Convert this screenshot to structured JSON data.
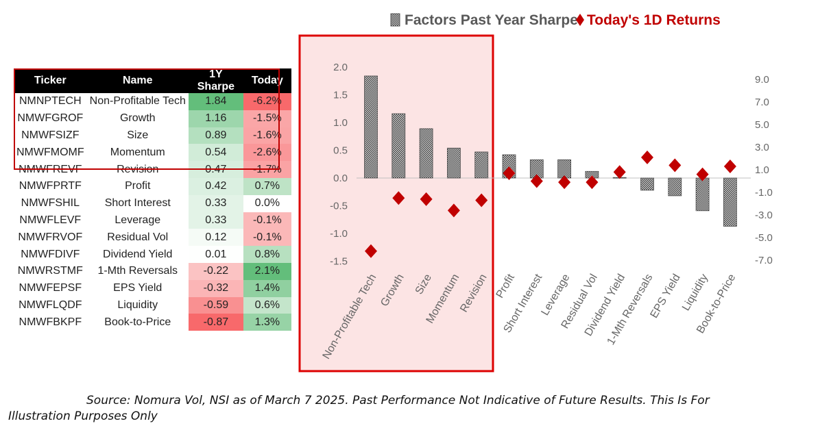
{
  "table": {
    "headers": [
      "Ticker",
      "Name",
      "1Y Sharpe",
      "Today"
    ],
    "rows": [
      {
        "ticker": "NMNPTECH",
        "name": "Non-Profitable Tech",
        "sharpe": "1.84",
        "today": "-6.2%"
      },
      {
        "ticker": "NMWFGROF",
        "name": "Growth",
        "sharpe": "1.16",
        "today": "-1.5%"
      },
      {
        "ticker": "NMWFSIZF",
        "name": "Size",
        "sharpe": "0.89",
        "today": "-1.6%"
      },
      {
        "ticker": "NMWFMOMF",
        "name": "Momentum",
        "sharpe": "0.54",
        "today": "-2.6%"
      },
      {
        "ticker": "NMWFREVF",
        "name": "Revision",
        "sharpe": "0.47",
        "today": "-1.7%"
      },
      {
        "ticker": "NMWFPRTF",
        "name": "Profit",
        "sharpe": "0.42",
        "today": "0.7%"
      },
      {
        "ticker": "NMWFSHIL",
        "name": "Short Interest",
        "sharpe": "0.33",
        "today": "0.0%"
      },
      {
        "ticker": "NMWFLEVF",
        "name": "Leverage",
        "sharpe": "0.33",
        "today": "-0.1%"
      },
      {
        "ticker": "NMWFRVOF",
        "name": "Residual Vol",
        "sharpe": "0.12",
        "today": "-0.1%"
      },
      {
        "ticker": "NMWFDIVF",
        "name": "Dividend Yield",
        "sharpe": "0.01",
        "today": "0.8%"
      },
      {
        "ticker": "NMWRSTMF",
        "name": "1-Mth Reversals",
        "sharpe": "-0.22",
        "today": "2.1%"
      },
      {
        "ticker": "NMWFEPSF",
        "name": "EPS Yield",
        "sharpe": "-0.32",
        "today": "1.4%"
      },
      {
        "ticker": "NMWFLQDF",
        "name": "Liquidity",
        "sharpe": "-0.59",
        "today": "0.6%"
      },
      {
        "ticker": "NMWFBKPF",
        "name": "Book-to-Price",
        "sharpe": "-0.87",
        "today": "1.3%"
      }
    ]
  },
  "colors": {
    "header_bg": "#000000",
    "highlight_border": "#c00000",
    "diamond": "#c00000",
    "bar_fill": "#8c8c8c",
    "legend_bar_text": "#595959",
    "legend_diamond_text": "#c00000"
  },
  "chart_data": {
    "type": "bar",
    "categories": [
      "Non-Profitable Tech",
      "Growth",
      "Size",
      "Momentum",
      "Revision",
      "Profit",
      "Short Interest",
      "Leverage",
      "Residual Vol",
      "Dividend Yield",
      "1-Mth Reversals",
      "EPS Yield",
      "Liquidity",
      "Book-to-Price"
    ],
    "series": [
      {
        "name": "Factors Past Year Sharpe",
        "kind": "bar",
        "axis": "left",
        "values": [
          1.84,
          1.16,
          0.89,
          0.54,
          0.47,
          0.42,
          0.33,
          0.33,
          0.12,
          0.01,
          -0.22,
          -0.32,
          -0.59,
          -0.87
        ]
      },
      {
        "name": "Today's 1D Returns",
        "kind": "diamond",
        "axis": "right",
        "values": [
          -6.2,
          -1.5,
          -1.6,
          -2.6,
          -1.7,
          0.7,
          0.0,
          -0.1,
          -0.1,
          0.8,
          2.1,
          1.4,
          0.6,
          1.3
        ]
      }
    ],
    "legend": [
      "Factors Past Year Sharpe",
      "Today's 1D Returns"
    ],
    "legend_position": "top",
    "y_left": {
      "ylim": [
        -1.5,
        2.0
      ],
      "ticks": [
        "2.0",
        "1.5",
        "1.0",
        "0.5",
        "0.0",
        "-0.5",
        "-1.0",
        "-1.5"
      ],
      "tick_values": [
        2.0,
        1.5,
        1.0,
        0.5,
        0.0,
        -0.5,
        -1.0,
        -1.5
      ]
    },
    "y_right": {
      "ylim": [
        -7.0,
        9.0
      ],
      "ticks": [
        "9.0",
        "7.0",
        "5.0",
        "3.0",
        "1.0",
        "-1.0",
        "-3.0",
        "-5.0",
        "-7.0"
      ],
      "tick_values": [
        9.0,
        7.0,
        5.0,
        3.0,
        1.0,
        -1.0,
        -3.0,
        -5.0,
        -7.0
      ]
    },
    "grid": false
  },
  "source_note": {
    "line1": "Source: Nomura Vol, NSI as of March 7 2025. Past Performance Not Indicative of Future Results. This Is For",
    "line2": "Illustration Purposes Only"
  }
}
